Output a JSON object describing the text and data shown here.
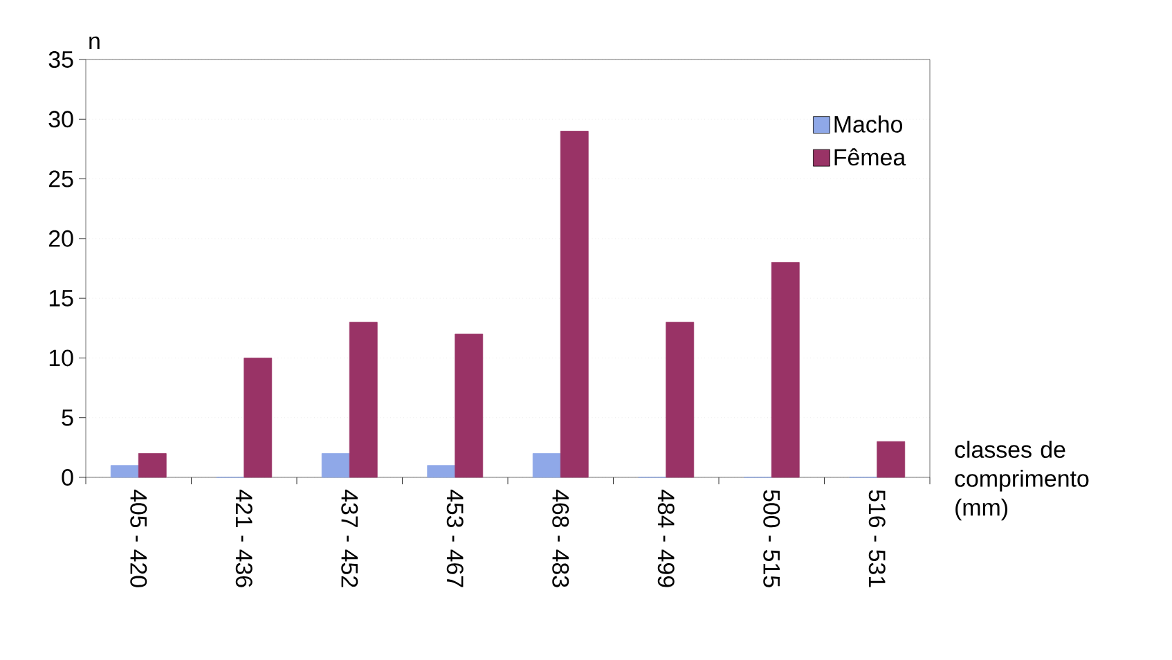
{
  "chart_data": {
    "type": "bar",
    "ylabel": "n",
    "xlabel": "classes de comprimento (mm)",
    "categories": [
      "405 - 420",
      "421 - 436",
      "437 - 452",
      "453 - 467",
      "468 - 483",
      "484 - 499",
      "500 - 515",
      "516 - 531"
    ],
    "series": [
      {
        "name": "Macho",
        "color": "#8fa8e8",
        "values": [
          1,
          0,
          2,
          1,
          2,
          0,
          0,
          0
        ]
      },
      {
        "name": "Fêmea",
        "color": "#993366",
        "values": [
          2,
          10,
          13,
          12,
          29,
          13,
          18,
          3
        ]
      }
    ],
    "ylim": [
      0,
      35
    ],
    "yticks": [
      0,
      5,
      10,
      15,
      20,
      25,
      30,
      35
    ],
    "grid": "y",
    "legend": "top right"
  }
}
